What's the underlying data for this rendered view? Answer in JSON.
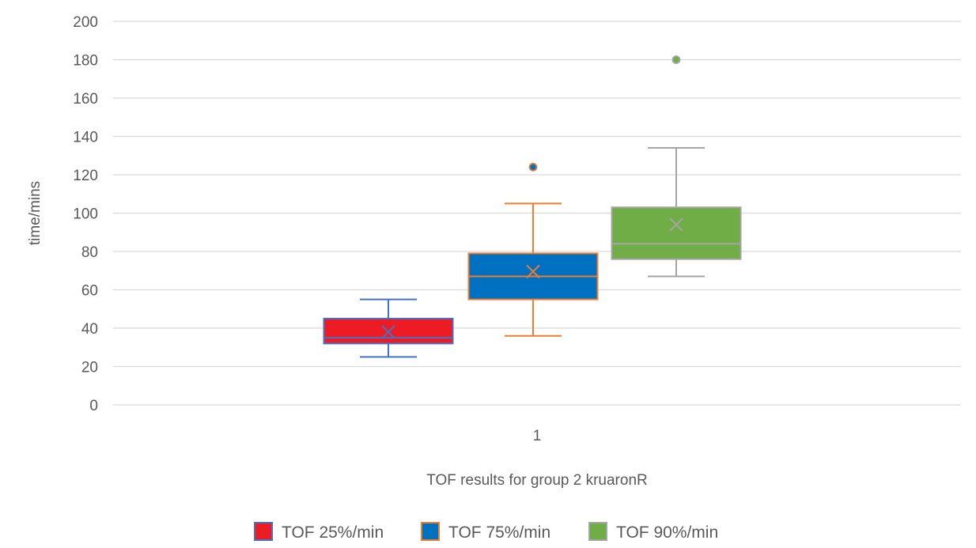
{
  "chart_data": {
    "type": "box",
    "xlabel": "TOF results for group 2 kruaronR",
    "ylabel": "time/mins",
    "ylim": [
      0,
      200
    ],
    "yticks": [
      0,
      20,
      40,
      60,
      80,
      100,
      120,
      140,
      160,
      180,
      200
    ],
    "categories": [
      "1"
    ],
    "grid": true,
    "legend_position": "bottom",
    "series": [
      {
        "name": "TOF 25%/min",
        "fill": "#ED1C24",
        "border": "#4472C4",
        "min": 25,
        "q1": 32,
        "median": 35,
        "q3": 45,
        "max": 55,
        "mean": 38,
        "outliers": []
      },
      {
        "name": "TOF 75%/min",
        "fill": "#0070C0",
        "border": "#ED7D31",
        "min": 36,
        "q1": 55,
        "median": 67,
        "q3": 79,
        "max": 105,
        "mean": 69.5,
        "outliers": [
          124
        ]
      },
      {
        "name": "TOF 90%/min",
        "fill": "#70AD47",
        "border": "#A5A5A5",
        "min": 67,
        "q1": 76,
        "median": 84,
        "q3": 103,
        "max": 134,
        "mean": 94,
        "outliers": [
          180
        ]
      }
    ]
  }
}
